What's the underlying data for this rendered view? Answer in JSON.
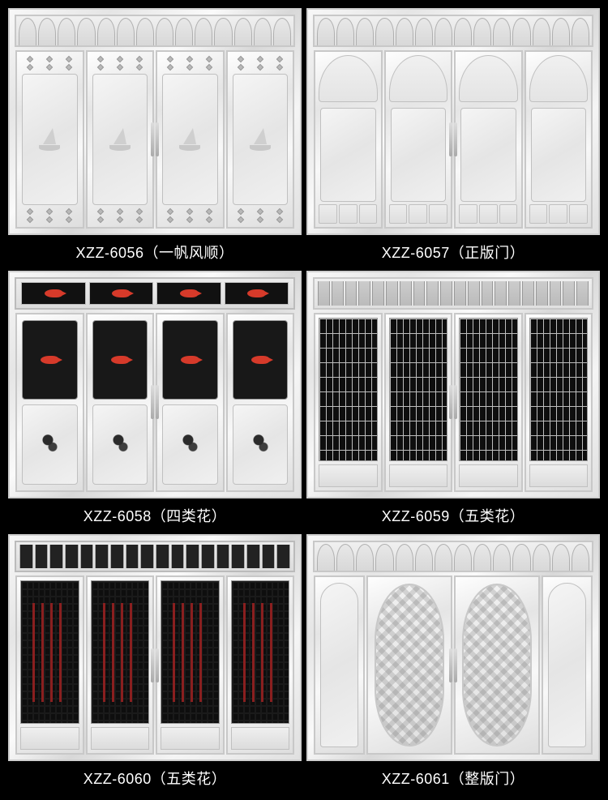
{
  "background_color": "#000000",
  "caption_color": "#ffffff",
  "caption_fontsize": 18,
  "metal_gradient": [
    "#f8f8f8",
    "#e5e5e5",
    "#fafafa",
    "#d8d8d8",
    "#f5f5f5",
    "#e0e0e0"
  ],
  "accent_red": "#d63a2a",
  "dark_panel": "#181818",
  "products": [
    {
      "sku": "XZZ-6056",
      "name_cn": "一帆风顺",
      "label": "XZZ-6056（一帆风顺）",
      "style": "embossed-boat",
      "panels": 4,
      "transom": "arches"
    },
    {
      "sku": "XZZ-6057",
      "name_cn": "正版门",
      "label": "XZZ-6057（正版门）",
      "style": "arched-mini",
      "panels": 4,
      "transom": "arches"
    },
    {
      "sku": "XZZ-6058",
      "name_cn": "四类花",
      "label": "XZZ-6058（四类花）",
      "style": "fish-ink",
      "panels": 4,
      "transom": "fish"
    },
    {
      "sku": "XZZ-6059",
      "name_cn": "五类花",
      "label": "XZZ-6059（五类花）",
      "style": "geo-grille",
      "panels": 4,
      "transom": "grid"
    },
    {
      "sku": "XZZ-6060",
      "name_cn": "五类花",
      "label": "XZZ-6060（五类花）",
      "style": "red-grille",
      "panels": 4,
      "transom": "bars-dark"
    },
    {
      "sku": "XZZ-6061",
      "name_cn": "整版门",
      "label": "XZZ-6061（整版门）",
      "style": "glass-oval",
      "panels": 4,
      "transom": "arches",
      "narrow_sides": true
    }
  ]
}
